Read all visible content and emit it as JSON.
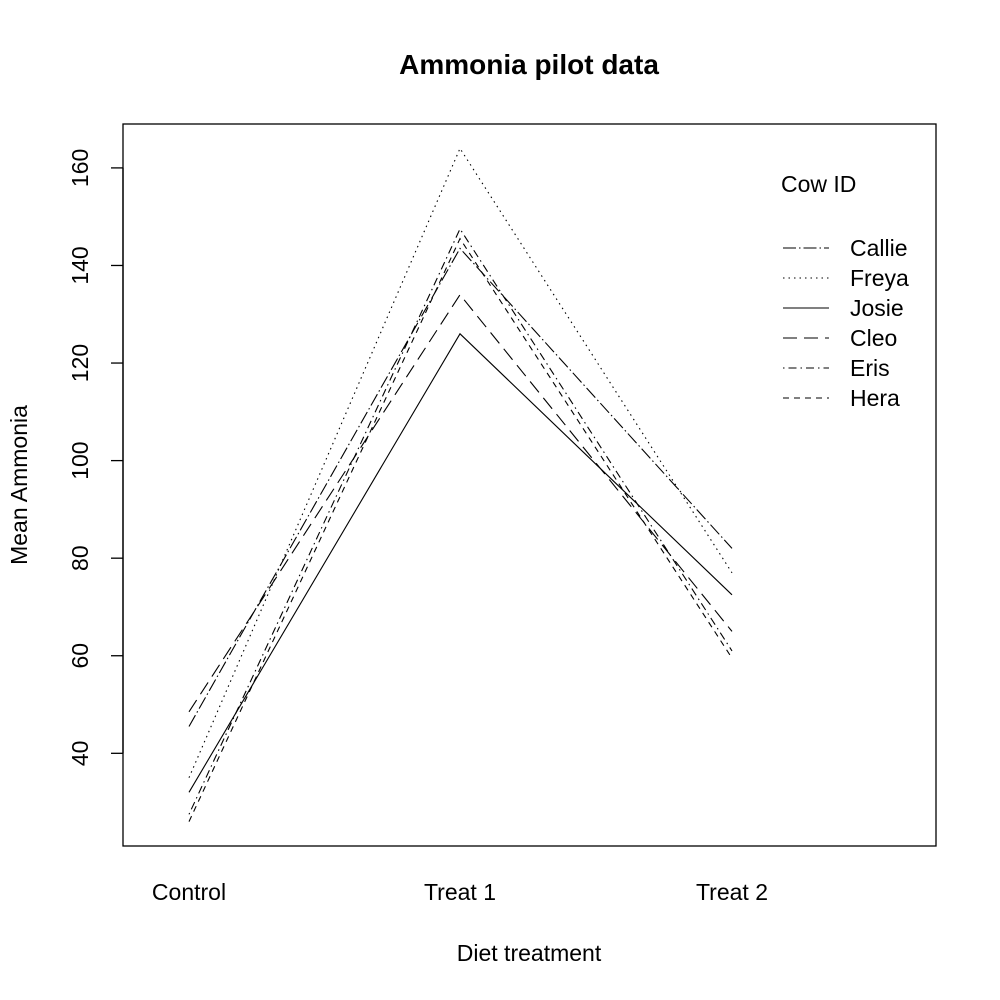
{
  "chart_data": {
    "type": "line",
    "title": "Ammonia pilot data",
    "xlabel": "Diet treatment",
    "ylabel": "Mean Ammonia",
    "categories": [
      "Control",
      "Treat 1",
      "Treat 2"
    ],
    "ylim": [
      21,
      169
    ],
    "yticks": [
      40,
      60,
      80,
      100,
      120,
      140,
      160
    ],
    "grid": false,
    "legend": {
      "title": "Cow ID",
      "position": "top-right",
      "box": false
    },
    "series": [
      {
        "name": "Callie",
        "values": [
          45.5,
          143.5,
          82.0
        ],
        "dash": "longdash-dot"
      },
      {
        "name": "Freya",
        "values": [
          35.0,
          164.0,
          77.0
        ],
        "dash": "dotted"
      },
      {
        "name": "Josie",
        "values": [
          32.0,
          126.0,
          72.5
        ],
        "dash": "solid"
      },
      {
        "name": "Cleo",
        "values": [
          48.5,
          134.0,
          65.0
        ],
        "dash": "dashed"
      },
      {
        "name": "Eris",
        "values": [
          27.5,
          147.5,
          61.0
        ],
        "dash": "dotdash"
      },
      {
        "name": "Hera",
        "values": [
          26.0,
          145.5,
          59.5
        ],
        "dash": "shortdash"
      }
    ]
  }
}
